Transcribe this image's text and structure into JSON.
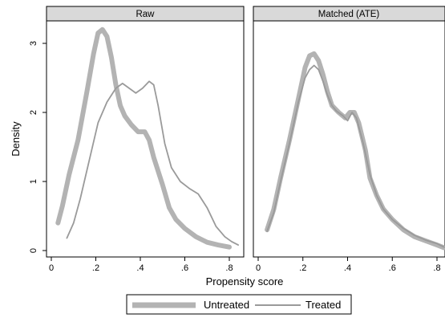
{
  "chart_data": {
    "type": "line",
    "ylabel": "Density",
    "xlabel": "Propensity score",
    "xlim": [
      0,
      0.85
    ],
    "ylim": [
      0,
      3.35
    ],
    "x_ticks": [
      0,
      0.2,
      0.4,
      0.6,
      0.8
    ],
    "x_tick_labels": [
      "0",
      ".2",
      ".4",
      ".6",
      ".8"
    ],
    "y_ticks": [
      0,
      1,
      2,
      3
    ],
    "y_tick_labels": [
      "0",
      "1",
      "2",
      "3"
    ],
    "grid": false,
    "legend_position": "bottom",
    "legend": [
      "Untreated",
      "Treated"
    ],
    "panels": [
      {
        "title": "Raw",
        "series": [
          {
            "name": "Untreated",
            "points": [
              [
                0.03,
                0.4
              ],
              [
                0.05,
                0.65
              ],
              [
                0.08,
                1.1
              ],
              [
                0.12,
                1.6
              ],
              [
                0.16,
                2.3
              ],
              [
                0.19,
                2.85
              ],
              [
                0.21,
                3.15
              ],
              [
                0.23,
                3.2
              ],
              [
                0.25,
                3.1
              ],
              [
                0.27,
                2.8
              ],
              [
                0.29,
                2.4
              ],
              [
                0.31,
                2.1
              ],
              [
                0.33,
                1.95
              ],
              [
                0.36,
                1.82
              ],
              [
                0.39,
                1.72
              ],
              [
                0.42,
                1.72
              ],
              [
                0.44,
                1.6
              ],
              [
                0.46,
                1.35
              ],
              [
                0.5,
                0.95
              ],
              [
                0.53,
                0.62
              ],
              [
                0.56,
                0.45
              ],
              [
                0.6,
                0.32
              ],
              [
                0.65,
                0.2
              ],
              [
                0.7,
                0.12
              ],
              [
                0.75,
                0.08
              ],
              [
                0.8,
                0.05
              ]
            ]
          },
          {
            "name": "Treated",
            "points": [
              [
                0.07,
                0.18
              ],
              [
                0.1,
                0.4
              ],
              [
                0.13,
                0.75
              ],
              [
                0.17,
                1.3
              ],
              [
                0.21,
                1.85
              ],
              [
                0.25,
                2.15
              ],
              [
                0.29,
                2.35
              ],
              [
                0.32,
                2.42
              ],
              [
                0.35,
                2.35
              ],
              [
                0.38,
                2.28
              ],
              [
                0.41,
                2.35
              ],
              [
                0.44,
                2.45
              ],
              [
                0.46,
                2.4
              ],
              [
                0.48,
                2.1
              ],
              [
                0.51,
                1.55
              ],
              [
                0.54,
                1.2
              ],
              [
                0.58,
                1.0
              ],
              [
                0.62,
                0.9
              ],
              [
                0.66,
                0.82
              ],
              [
                0.7,
                0.62
              ],
              [
                0.74,
                0.35
              ],
              [
                0.78,
                0.2
              ],
              [
                0.81,
                0.13
              ],
              [
                0.84,
                0.08
              ]
            ]
          }
        ]
      },
      {
        "title": "Matched (ATE)",
        "series": [
          {
            "name": "Untreated",
            "points": [
              [
                0.04,
                0.3
              ],
              [
                0.07,
                0.6
              ],
              [
                0.1,
                1.05
              ],
              [
                0.14,
                1.6
              ],
              [
                0.18,
                2.2
              ],
              [
                0.21,
                2.65
              ],
              [
                0.23,
                2.82
              ],
              [
                0.25,
                2.85
              ],
              [
                0.27,
                2.75
              ],
              [
                0.29,
                2.55
              ],
              [
                0.31,
                2.3
              ],
              [
                0.33,
                2.1
              ],
              [
                0.36,
                2.0
              ],
              [
                0.39,
                1.92
              ],
              [
                0.41,
                2.0
              ],
              [
                0.43,
                2.0
              ],
              [
                0.45,
                1.85
              ],
              [
                0.48,
                1.45
              ],
              [
                0.5,
                1.05
              ],
              [
                0.53,
                0.8
              ],
              [
                0.56,
                0.6
              ],
              [
                0.6,
                0.45
              ],
              [
                0.65,
                0.3
              ],
              [
                0.7,
                0.2
              ],
              [
                0.75,
                0.14
              ],
              [
                0.8,
                0.08
              ],
              [
                0.85,
                0.04
              ]
            ]
          },
          {
            "name": "Treated",
            "points": [
              [
                0.04,
                0.28
              ],
              [
                0.07,
                0.55
              ],
              [
                0.1,
                1.0
              ],
              [
                0.14,
                1.55
              ],
              [
                0.18,
                2.15
              ],
              [
                0.21,
                2.5
              ],
              [
                0.23,
                2.62
              ],
              [
                0.25,
                2.68
              ],
              [
                0.27,
                2.62
              ],
              [
                0.29,
                2.45
              ],
              [
                0.31,
                2.25
              ],
              [
                0.33,
                2.1
              ],
              [
                0.35,
                2.02
              ],
              [
                0.38,
                1.95
              ],
              [
                0.4,
                1.88
              ],
              [
                0.42,
                2.0
              ],
              [
                0.44,
                1.92
              ],
              [
                0.47,
                1.55
              ],
              [
                0.5,
                1.1
              ],
              [
                0.53,
                0.8
              ],
              [
                0.56,
                0.6
              ],
              [
                0.6,
                0.45
              ],
              [
                0.65,
                0.32
              ],
              [
                0.7,
                0.22
              ],
              [
                0.75,
                0.15
              ],
              [
                0.8,
                0.1
              ],
              [
                0.85,
                0.05
              ]
            ]
          }
        ]
      }
    ],
    "colors": {
      "untreated": "#b3b3b3",
      "treated": "#9a9a9a",
      "frame": "#000000",
      "header": "#d9d9d9"
    }
  }
}
